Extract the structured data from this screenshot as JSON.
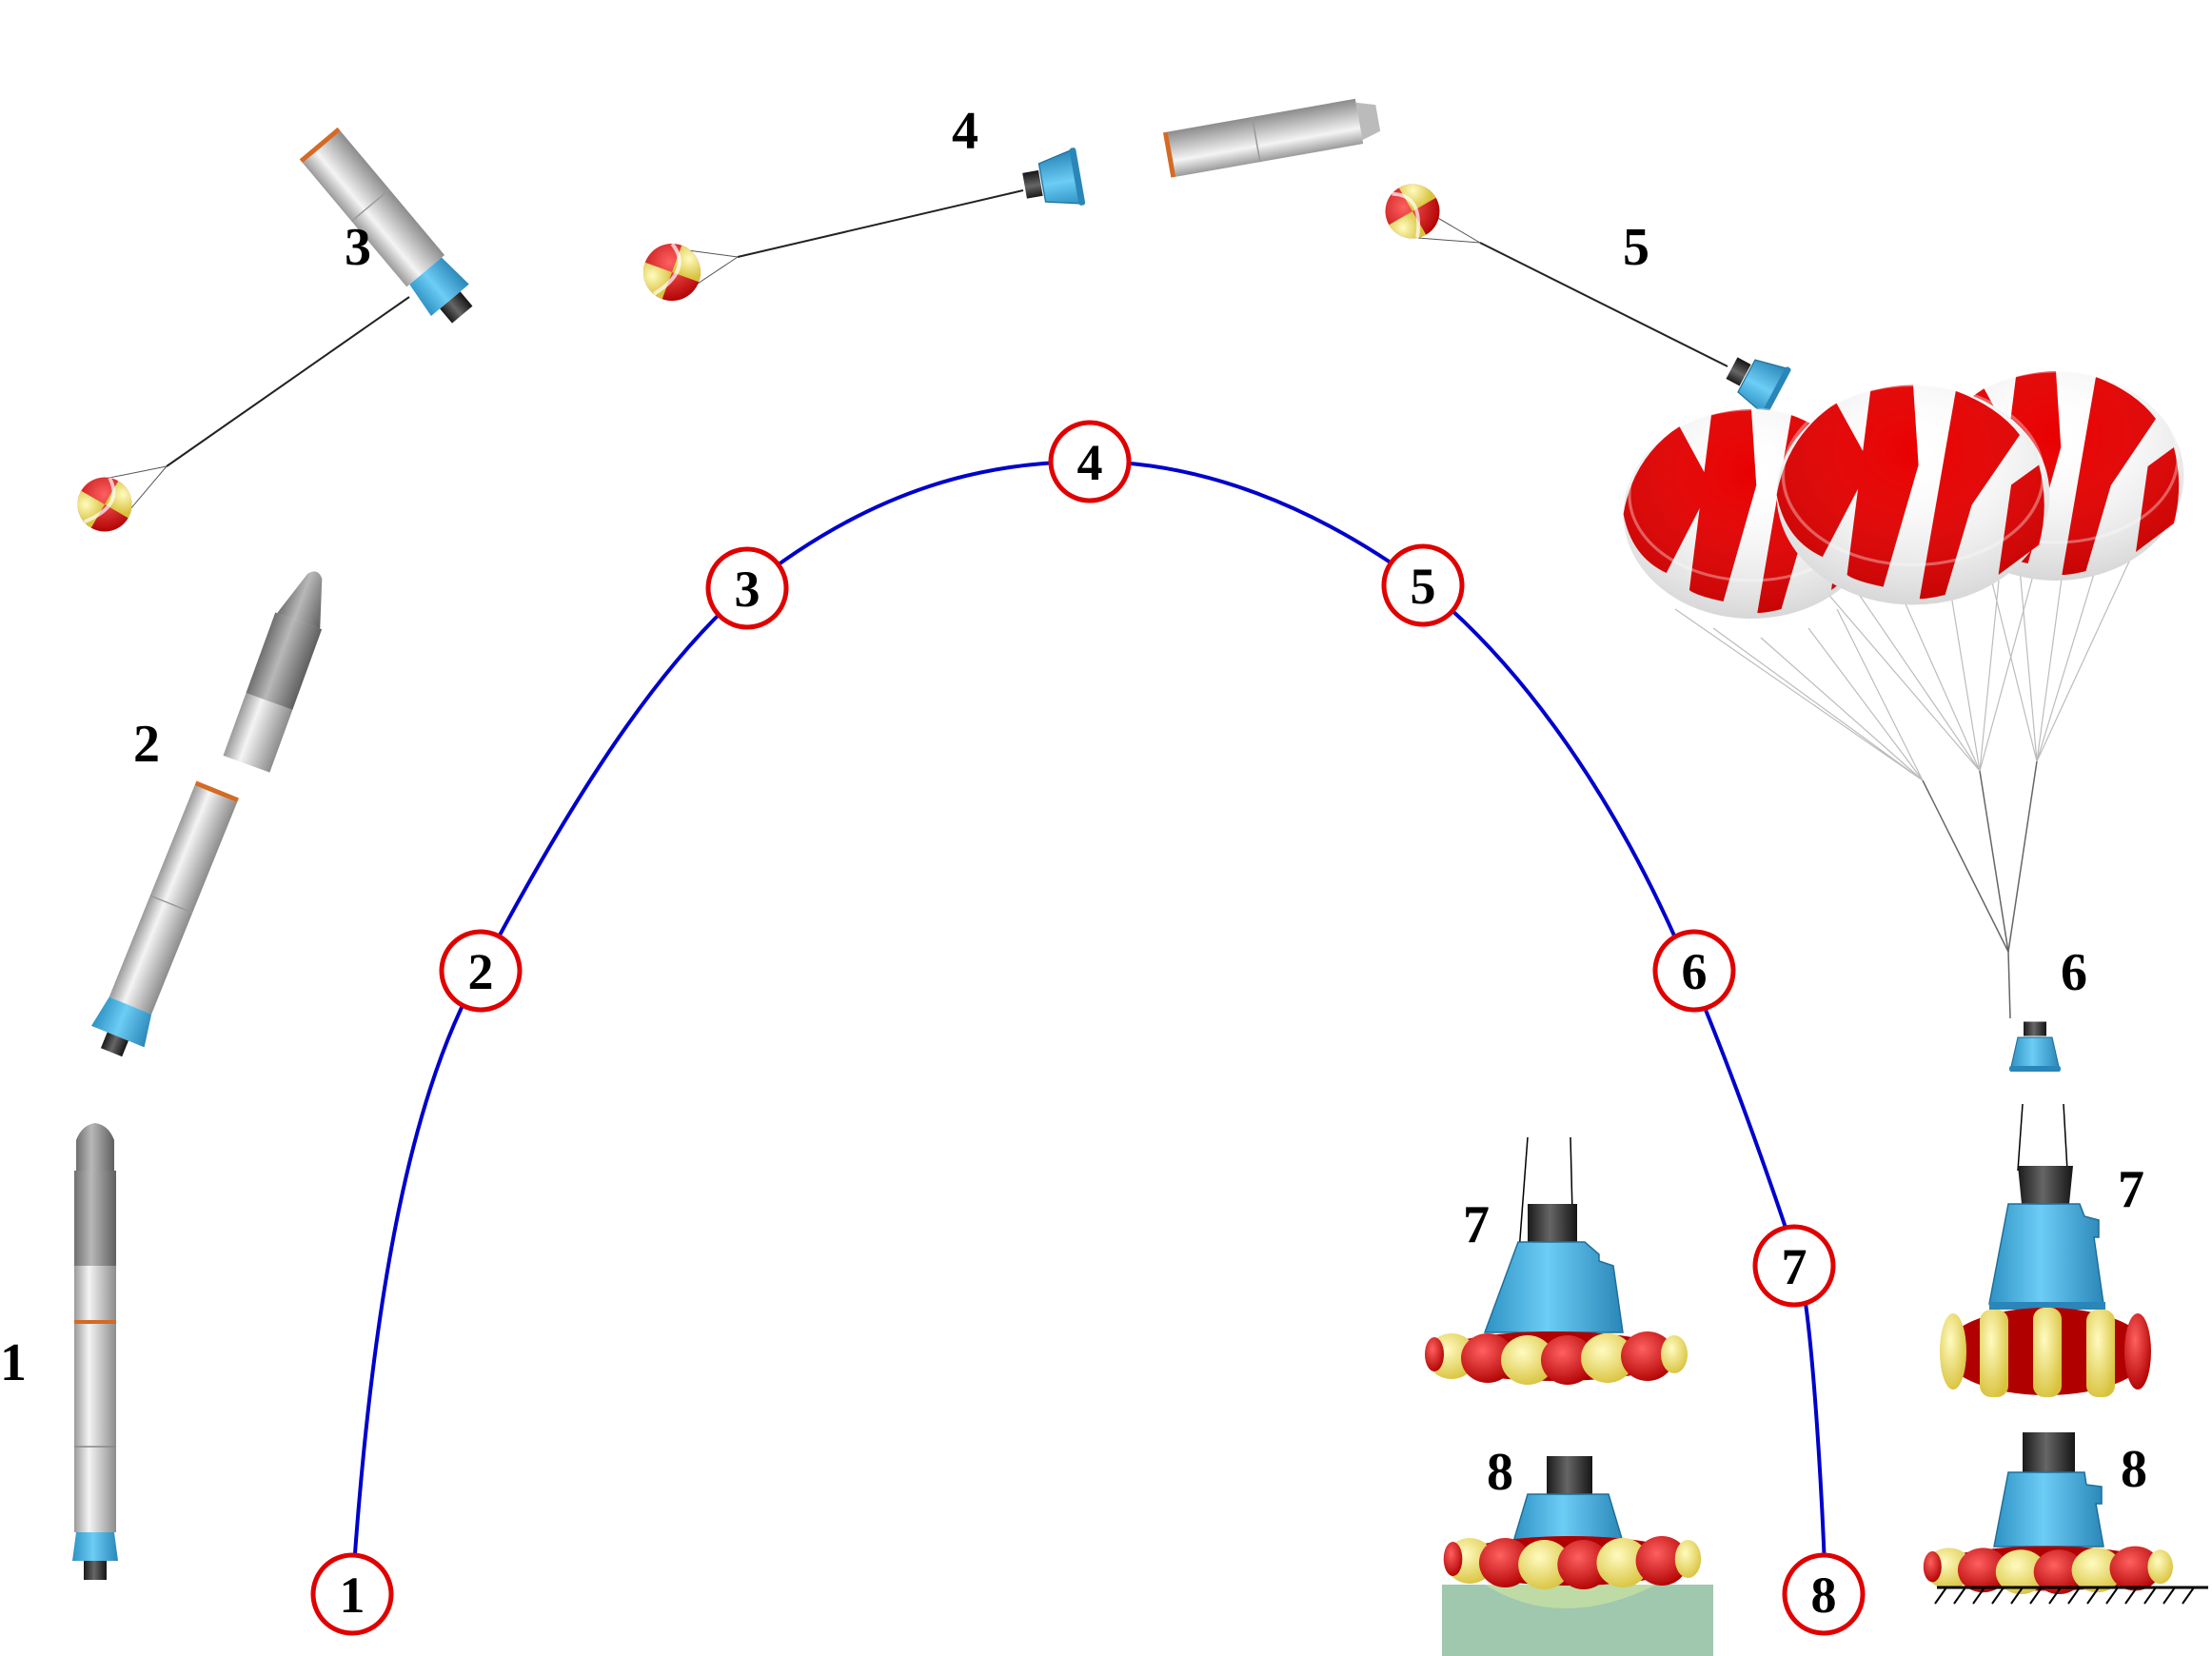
{
  "trajectory": {
    "markers": [
      "1",
      "2",
      "3",
      "4",
      "5",
      "6",
      "7",
      "8"
    ],
    "line_color": "#0000cc",
    "marker_color": "#e00000"
  },
  "stages": {
    "s1": "1",
    "s2": "2",
    "s3": "3",
    "s4": "4",
    "s5": "5",
    "s6": "6",
    "s7_left": "7",
    "s7_right": "7",
    "s8_left": "8",
    "s8_right": "8"
  },
  "colors": {
    "capsule": "#3fb3e8",
    "rocket": "#d8d8d8",
    "parachute_red": "#e00000",
    "parachute_yellow": "#f5e463",
    "water": "#9fc8ae"
  }
}
